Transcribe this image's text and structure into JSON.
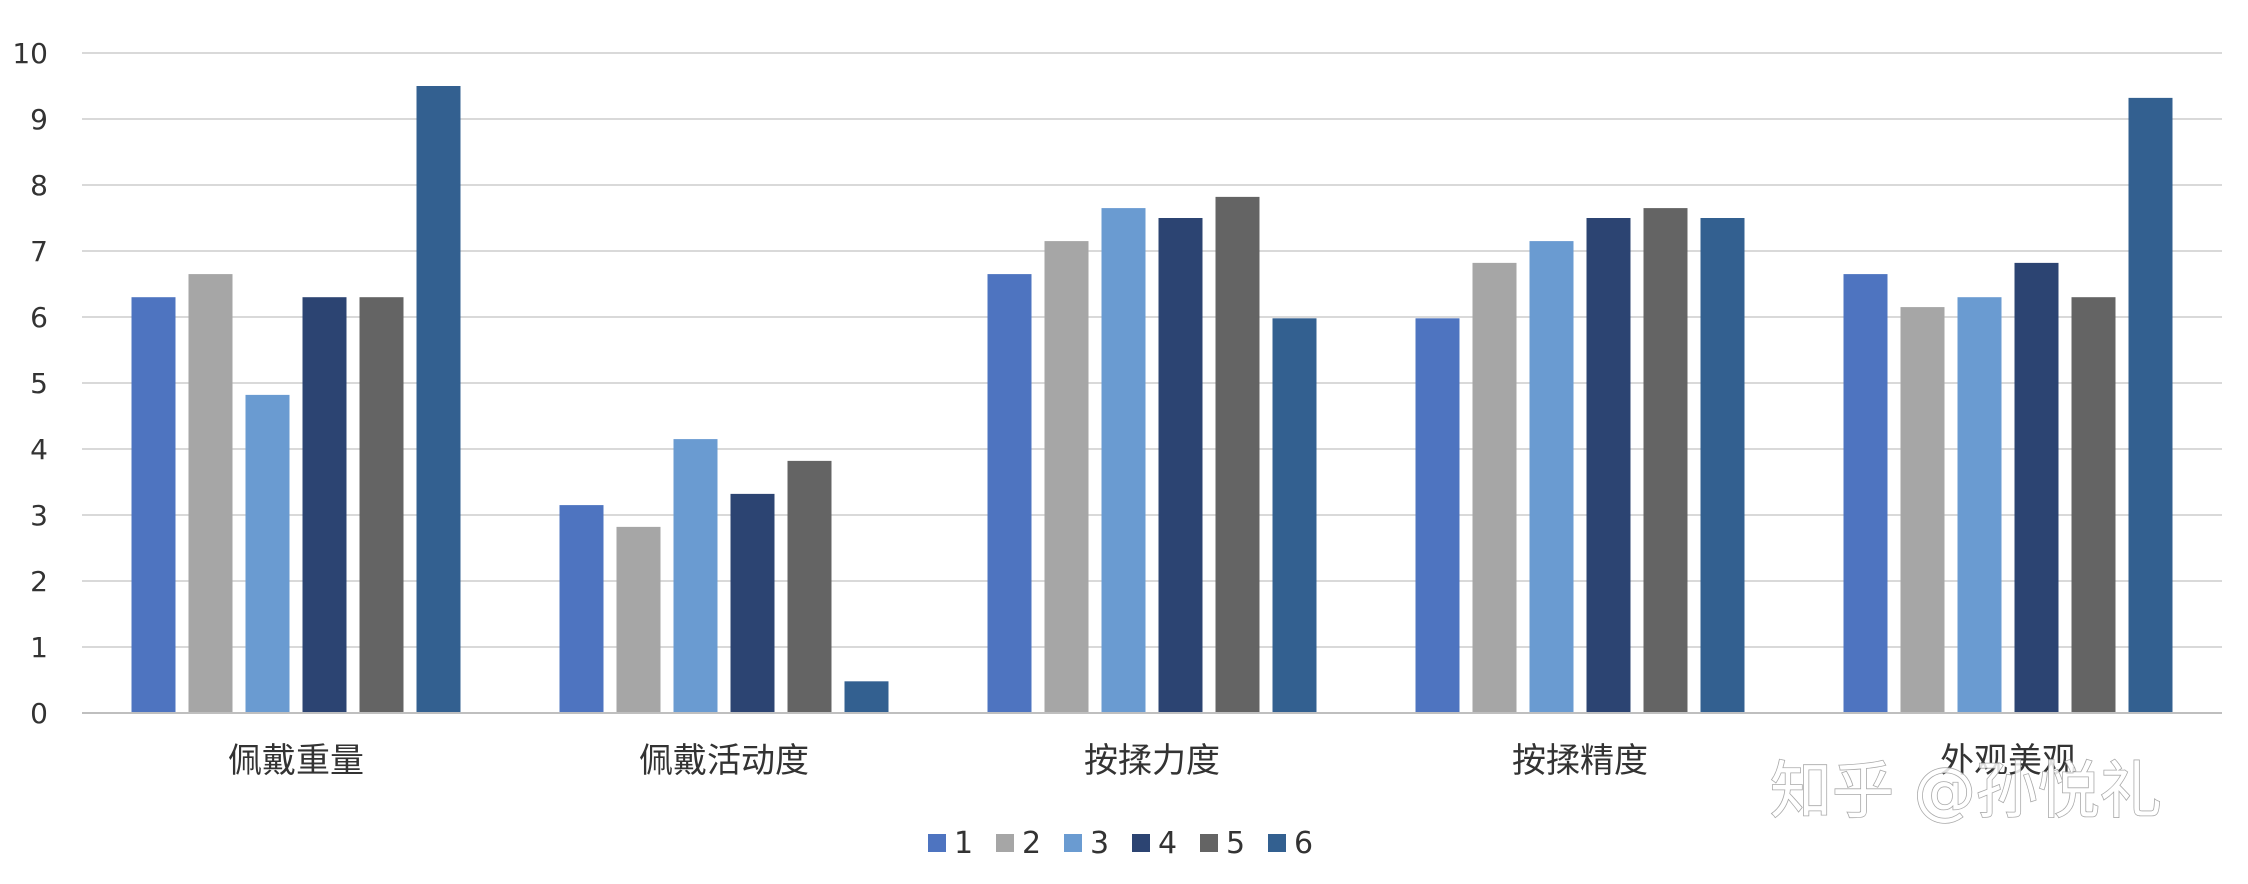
{
  "chart_data": {
    "type": "bar",
    "title": "",
    "xlabel": "",
    "ylabel": "",
    "ylim": [
      0,
      10
    ],
    "yticks": [
      0,
      1,
      2,
      3,
      4,
      5,
      6,
      7,
      8,
      9,
      10
    ],
    "grid": true,
    "legend_position": "bottom-center",
    "categories": [
      "佩戴重量",
      "佩戴活动度",
      "按揉力度",
      "按揉精度",
      "外观美观"
    ],
    "series": [
      {
        "name": "1",
        "color": "#4e74c0",
        "values": [
          6.3,
          3.15,
          6.65,
          5.98,
          6.65
        ]
      },
      {
        "name": "2",
        "color": "#a6a6a6",
        "values": [
          6.65,
          2.82,
          7.15,
          6.82,
          6.15
        ]
      },
      {
        "name": "3",
        "color": "#6a9bd1",
        "values": [
          4.82,
          4.15,
          7.65,
          7.15,
          6.3
        ]
      },
      {
        "name": "4",
        "color": "#2c4472",
        "values": [
          6.3,
          3.32,
          7.5,
          7.5,
          6.82
        ]
      },
      {
        "name": "5",
        "color": "#646464",
        "values": [
          6.3,
          3.82,
          7.82,
          7.65,
          6.3
        ]
      },
      {
        "name": "6",
        "color": "#336090",
        "values": [
          9.5,
          0.48,
          5.98,
          7.5,
          9.32
        ]
      }
    ]
  },
  "watermark": "知乎 @孙悦礼"
}
